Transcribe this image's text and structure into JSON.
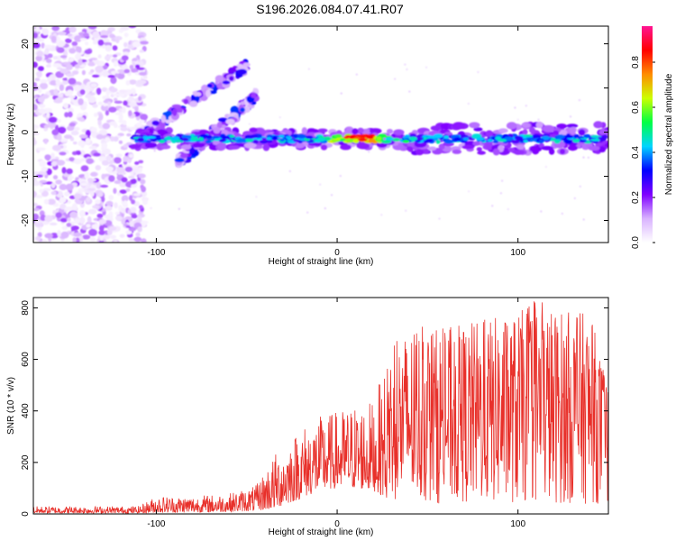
{
  "figure_title": "S196.2026.084.07.41.R07",
  "chart_data": [
    {
      "type": "heatmap",
      "title": "S196.2026.084.07.41.R07",
      "xlabel": "Height of straight line (km)",
      "ylabel": "Frequency (Hz)",
      "xlim": [
        -168,
        150
      ],
      "ylim": [
        -25,
        24
      ],
      "xticks": [
        -100,
        0,
        100
      ],
      "yticks": [
        -20,
        -10,
        0,
        10,
        20
      ],
      "colorbar": {
        "label": "Normalized spectral amplitude",
        "range": [
          0,
          0.96
        ],
        "ticks": [
          "0.0",
          "0.2",
          "0.4",
          "0.6",
          "0.8"
        ],
        "tick_values": [
          0,
          0.2,
          0.4,
          0.6,
          0.8
        ],
        "colors": [
          "#ffffff",
          "#d9b3ff",
          "#7f00ff",
          "#0000ff",
          "#00d5ff",
          "#00ff44",
          "#ccff00",
          "#ff8c00",
          "#ff0000",
          "#ff1493"
        ]
      },
      "features": [
        {
          "name": "noise region",
          "x": [
            -168,
            -110
          ],
          "y": [
            -25,
            24
          ],
          "amplitude": 0.08
        },
        {
          "name": "main ridge",
          "x": [
            -112,
            150
          ],
          "y": [
            -1.5,
            -1.5
          ],
          "amplitude": 0.45
        },
        {
          "name": "peak",
          "x": [
            5,
            20
          ],
          "y": [
            -1,
            -1
          ],
          "amplitude": 0.92
        },
        {
          "name": "upper streak",
          "x": [
            -110,
            -50
          ],
          "y": [
            -1,
            15
          ],
          "amplitude": 0.3
        },
        {
          "name": "lower streak",
          "x": [
            -88,
            -45
          ],
          "y": [
            -7,
            8
          ],
          "amplitude": 0.3
        }
      ]
    },
    {
      "type": "line",
      "title": "",
      "xlabel": "Height of straight line (km)",
      "ylabel": "SNR (10 * v/v)",
      "xlim": [
        -168,
        150
      ],
      "ylim": [
        0,
        840
      ],
      "xticks": [
        -100,
        0,
        100
      ],
      "yticks": [
        0,
        200,
        400,
        600,
        800
      ],
      "series": [
        {
          "name": "SNR",
          "color": "#e8302a",
          "envelope_x": [
            -168,
            -110,
            -100,
            -80,
            -60,
            -45,
            -35,
            -20,
            -10,
            0,
            10,
            20,
            30,
            40,
            50,
            60,
            70,
            80,
            90,
            100,
            110,
            120,
            130,
            140,
            150
          ],
          "envelope_low": [
            3,
            3,
            5,
            6,
            8,
            12,
            20,
            60,
            90,
            100,
            100,
            90,
            50,
            40,
            40,
            40,
            40,
            40,
            40,
            40,
            40,
            40,
            40,
            40,
            40
          ],
          "envelope_high": [
            30,
            30,
            70,
            70,
            80,
            110,
            230,
            340,
            380,
            400,
            430,
            440,
            650,
            720,
            730,
            720,
            740,
            760,
            770,
            780,
            840,
            800,
            790,
            780,
            500
          ]
        }
      ]
    }
  ]
}
